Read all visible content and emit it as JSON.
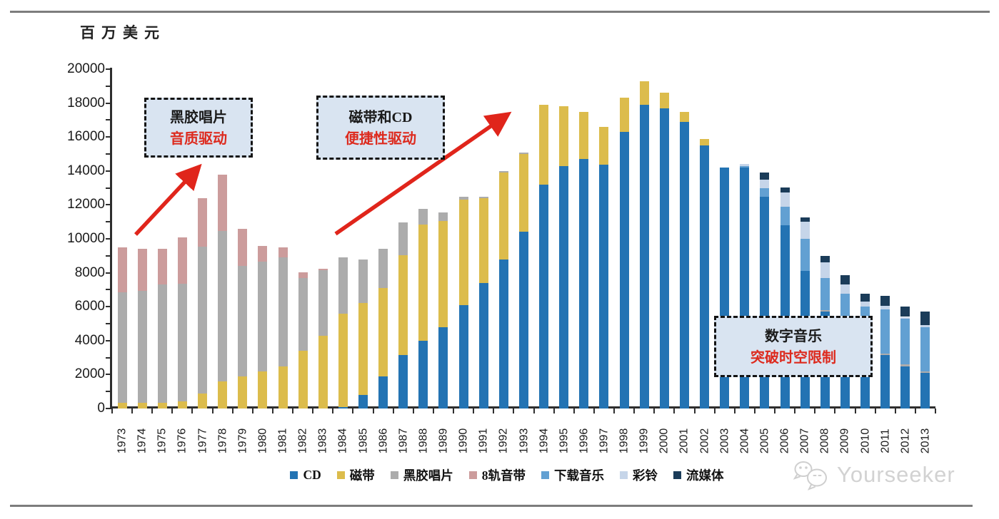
{
  "page": {
    "unit_label": "百万美元",
    "watermark": "Yourseeker"
  },
  "annotations": [
    {
      "line1": "黑胶唱片",
      "line2": "音质驱动"
    },
    {
      "line1": "磁带和CD",
      "line2": "便捷性驱动"
    },
    {
      "line1": "数字音乐",
      "line2": "突破时空限制"
    }
  ],
  "colors": {
    "axis": "#2e2e2e",
    "arrow_red": "#e0251b",
    "annotation_bg": "#d9e4f1",
    "annotation_border": "#141414",
    "annotation_text_red": "#dd2a1e",
    "watermark_gray": "#d2d2d2"
  },
  "chart_data": {
    "type": "bar",
    "stacked": true,
    "title": "",
    "ylabel": "百万美元",
    "xlabel": "",
    "ylim": [
      0,
      20000
    ],
    "ytick_step": 2000,
    "minor_ytick_step": 1000,
    "grid": false,
    "legend_position": "bottom",
    "y_tick_labels": [
      0,
      2000,
      4000,
      6000,
      8000,
      10000,
      12000,
      14000,
      16000,
      18000,
      20000
    ],
    "categories": [
      1973,
      1974,
      1975,
      1976,
      1977,
      1978,
      1979,
      1980,
      1981,
      1982,
      1983,
      1984,
      1985,
      1986,
      1987,
      1988,
      1989,
      1990,
      1991,
      1992,
      1993,
      1994,
      1995,
      1996,
      1997,
      1998,
      1999,
      2000,
      2001,
      2002,
      2003,
      2004,
      2005,
      2006,
      2007,
      2008,
      2009,
      2010,
      2011,
      2012,
      2013
    ],
    "series": [
      {
        "name": "CD",
        "color": "#2373b3",
        "values": [
          0,
          0,
          0,
          0,
          0,
          0,
          0,
          0,
          0,
          0,
          0,
          100,
          800,
          1900,
          3150,
          4000,
          4800,
          6100,
          7400,
          8800,
          10400,
          13200,
          14300,
          14700,
          14350,
          16300,
          17900,
          17700,
          16900,
          15500,
          14200,
          14200,
          12500,
          10800,
          8100,
          5700,
          4300,
          3600,
          3150,
          2500,
          2100
        ]
      },
      {
        "name": "磁带",
        "color": "#dcbc4c",
        "values": [
          350,
          350,
          350,
          400,
          900,
          1600,
          1900,
          2200,
          2500,
          3400,
          4300,
          5500,
          5400,
          5200,
          5900,
          6850,
          6250,
          6200,
          5000,
          5100,
          4600,
          4700,
          3500,
          2800,
          2250,
          2000,
          1400,
          900,
          600,
          400,
          0,
          0,
          0,
          0,
          0,
          0,
          0,
          0,
          0,
          0,
          0
        ]
      },
      {
        "name": "黑胶唱片",
        "color": "#acacac",
        "values": [
          6500,
          6600,
          6950,
          6950,
          8650,
          8850,
          6500,
          6450,
          6400,
          4280,
          3850,
          3300,
          2600,
          2300,
          1900,
          900,
          500,
          200,
          100,
          100,
          100,
          0,
          0,
          0,
          0,
          0,
          0,
          0,
          0,
          0,
          0,
          0,
          0,
          0,
          0,
          100,
          100,
          100,
          100,
          100,
          100
        ]
      },
      {
        "name": "8轨音带",
        "color": "#cc9c9c",
        "values": [
          2650,
          2450,
          2100,
          2750,
          2850,
          3350,
          2200,
          950,
          600,
          350,
          100,
          0,
          0,
          0,
          0,
          0,
          0,
          0,
          0,
          0,
          0,
          0,
          0,
          0,
          0,
          0,
          0,
          0,
          0,
          0,
          0,
          0,
          0,
          0,
          0,
          0,
          0,
          0,
          0,
          0,
          0
        ]
      },
      {
        "name": "下载音乐",
        "color": "#62a0d2",
        "values": [
          0,
          0,
          0,
          0,
          0,
          0,
          0,
          0,
          0,
          0,
          0,
          0,
          0,
          0,
          0,
          0,
          0,
          0,
          0,
          0,
          0,
          0,
          0,
          0,
          0,
          0,
          0,
          0,
          0,
          0,
          0,
          100,
          500,
          1100,
          1900,
          1900,
          2350,
          2300,
          2600,
          2700,
          2600
        ]
      },
      {
        "name": "彩铃",
        "color": "#c6d5e9",
        "values": [
          0,
          0,
          0,
          0,
          0,
          0,
          0,
          0,
          0,
          0,
          0,
          0,
          0,
          0,
          0,
          0,
          0,
          0,
          0,
          0,
          0,
          0,
          0,
          0,
          0,
          0,
          0,
          0,
          0,
          0,
          0,
          100,
          500,
          850,
          1000,
          900,
          550,
          300,
          200,
          100,
          100
        ]
      },
      {
        "name": "流媒体",
        "color": "#1b3c59",
        "values": [
          0,
          0,
          0,
          0,
          0,
          0,
          0,
          0,
          0,
          0,
          0,
          0,
          0,
          0,
          0,
          0,
          0,
          0,
          0,
          0,
          0,
          0,
          0,
          0,
          0,
          0,
          0,
          0,
          0,
          0,
          0,
          0,
          400,
          280,
          280,
          390,
          540,
          480,
          600,
          600,
          800
        ]
      }
    ]
  }
}
